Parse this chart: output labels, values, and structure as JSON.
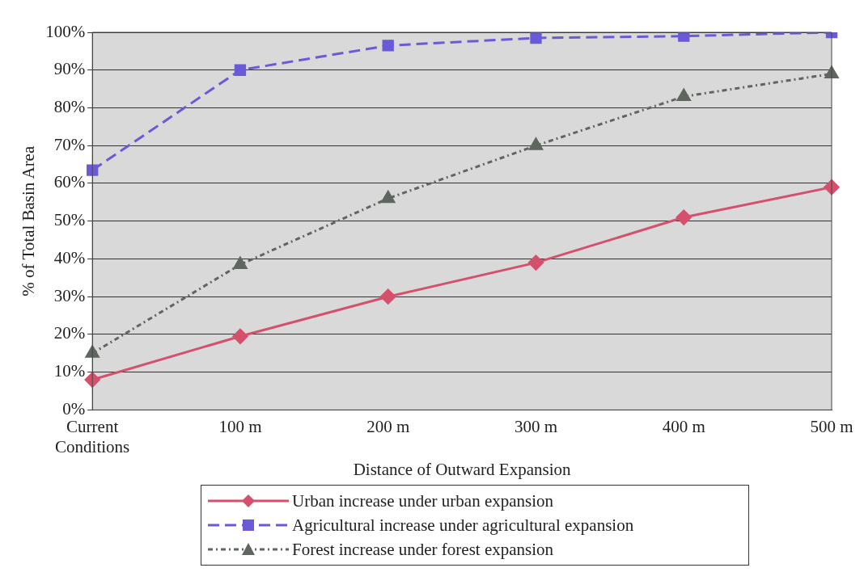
{
  "chart_data": {
    "type": "line",
    "xlabel": "Distance of Outward Expansion",
    "ylabel": "% of Total Basin Area",
    "categories": [
      "Current Conditions",
      "100 m",
      "200 m",
      "300 m",
      "400 m",
      "500 m"
    ],
    "series": [
      {
        "name": "Urban increase under urban expansion",
        "color": "#d4506c",
        "values": [
          8,
          19.5,
          30,
          39,
          51,
          59
        ],
        "marker": "diamond",
        "line_style": "solid"
      },
      {
        "name": "Agricultural increase under agricultural expansion",
        "color": "#6a5ad8",
        "values": [
          63.5,
          90,
          96.5,
          98.5,
          99,
          100
        ],
        "marker": "square",
        "line_style": "dashed"
      },
      {
        "name": "Forest increase under forest expansion",
        "color": "#5f665f",
        "values": [
          15,
          38.5,
          56,
          70,
          83,
          89
        ],
        "marker": "triangle",
        "line_style": "dotted"
      }
    ],
    "ylim": [
      0,
      100
    ],
    "yticks": [
      {
        "value": 0,
        "label": "0%"
      },
      {
        "value": 10,
        "label": "10%"
      },
      {
        "value": 20,
        "label": "20%"
      },
      {
        "value": 30,
        "label": "30%"
      },
      {
        "value": 40,
        "label": "40%"
      },
      {
        "value": 50,
        "label": "50%"
      },
      {
        "value": 60,
        "label": "60%"
      },
      {
        "value": 70,
        "label": "70%"
      },
      {
        "value": 80,
        "label": "80%"
      },
      {
        "value": 90,
        "label": "90%"
      },
      {
        "value": 100,
        "label": "100%"
      }
    ],
    "grid": "y",
    "legend": "bottom"
  }
}
